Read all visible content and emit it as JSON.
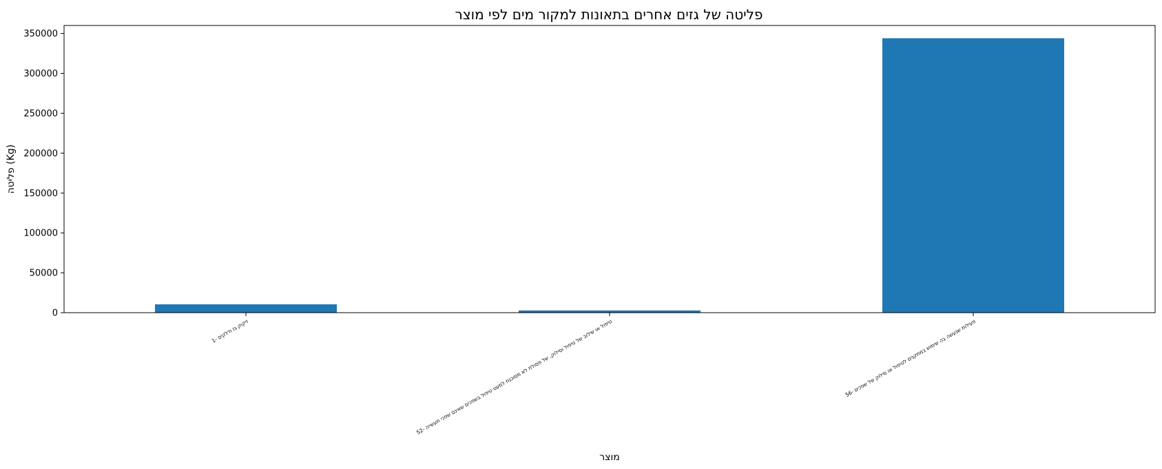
{
  "chart_data": {
    "type": "bar",
    "title": "פליטה של גזים אחרים בתאונות למקור מים לפי מוצר",
    "xlabel": "מוצר",
    "ylabel": "פליטה (Kg)",
    "categories": [
      "1- זיקוק גז ודלקים",
      "52- טיפול או שילוב של טיפול וסילוק, של פסולת לא מסוכנת למעט טיפול בשפכים שאינם שפכי תעשייה",
      "56- פעילות שנעשה בה שימוש במתקנים לטיפול או סילוק של שפכים"
    ],
    "values": [
      10500,
      2800,
      344000
    ],
    "ylim": [
      0,
      360000
    ],
    "yticks": [
      0,
      50000,
      100000,
      150000,
      200000,
      250000,
      300000,
      350000
    ],
    "grid": false,
    "legend": "none",
    "bar_color": "#1f77b4"
  }
}
